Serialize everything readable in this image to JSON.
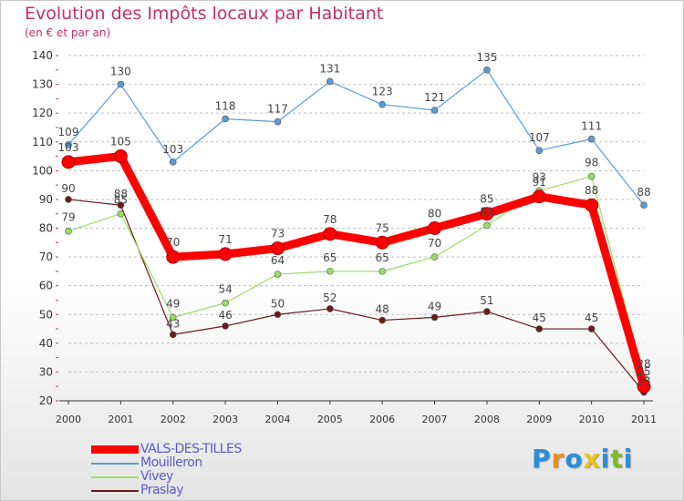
{
  "chart_data": {
    "type": "line",
    "title": "Evolution des Impôts locaux par Habitant",
    "subtitle": "(en € et par an)",
    "x": [
      "2000",
      "2001",
      "2002",
      "2003",
      "2004",
      "2005",
      "2006",
      "2007",
      "2008",
      "2009",
      "2010",
      "2011"
    ],
    "ylim": [
      20,
      140
    ],
    "yticks": [
      20,
      30,
      40,
      50,
      60,
      70,
      80,
      90,
      100,
      110,
      120,
      130,
      140
    ],
    "grid": "dashed-horizontal",
    "series": [
      {
        "name": "Praslay",
        "color": "#6b1a1a",
        "values": [
          90,
          88,
          43,
          46,
          50,
          52,
          48,
          49,
          51,
          45,
          45,
          23
        ]
      },
      {
        "name": "Vivey",
        "color": "#99dd66",
        "values": [
          79,
          85,
          49,
          54,
          64,
          65,
          65,
          70,
          81,
          93,
          98,
          28
        ]
      },
      {
        "name": "Mouilleron",
        "color": "#5b9bd5",
        "values": [
          109,
          130,
          103,
          118,
          117,
          131,
          123,
          121,
          135,
          107,
          111,
          88
        ]
      },
      {
        "name": "VALS-DES-TILLES",
        "color": "#ff0000",
        "values": [
          103,
          105,
          70,
          71,
          73,
          78,
          75,
          80,
          85,
          91,
          88,
          25
        ]
      }
    ],
    "data_labels": {
      "Praslay": [
        "90",
        "88",
        "43",
        "46",
        "50",
        "52",
        "48",
        "49",
        "51",
        "45",
        "45",
        "23"
      ],
      "Vivey": [
        "79",
        "85",
        "49",
        "54",
        "64",
        "65",
        "65",
        "70",
        "81",
        "93",
        "98",
        "28"
      ],
      "Mouilleron": [
        "109",
        "130",
        "103",
        "118",
        "117",
        "131",
        "123",
        "121",
        "135",
        "107",
        "111",
        "88"
      ],
      "VALS-DES-TILLES": [
        "103",
        "105",
        "70",
        "71",
        "73",
        "78",
        "75",
        "80",
        "85",
        "91",
        "88",
        "25"
      ]
    },
    "legend": [
      "VALS-DES-TILLES",
      "Mouilleron",
      "Vivey",
      "Praslay"
    ],
    "legend_position": "bottom-left"
  },
  "brand": {
    "letters": [
      "P",
      "r",
      "o",
      "x",
      "i",
      "t",
      "i"
    ],
    "colors": [
      "#2a8fd8",
      "#f08a1c",
      "#2a8fd8",
      "#e8c21a",
      "#2a8fd8",
      "#7dbb2c",
      "#2a8fd8"
    ]
  }
}
